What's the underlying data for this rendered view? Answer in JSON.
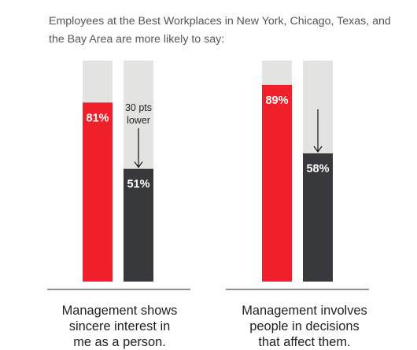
{
  "intro_text": "Employees at the Best Workplaces in New York, Chicago, Texas, and the Bay Area are more likely to say:",
  "colors": {
    "highlight": "#f0202a",
    "comparison": "#38393c",
    "track": "#e3e3e1",
    "baseline": "#222222",
    "arrow": "#111111",
    "label_text": "#ffffff"
  },
  "chart_data": [
    {
      "type": "bar",
      "ylim": [
        0,
        100
      ],
      "caption": "Management shows\nsincere interest in\nme as a person.",
      "bars": [
        {
          "value": 81,
          "label": "81%",
          "color_key": "highlight"
        },
        {
          "value": 51,
          "label": "51%",
          "color_key": "comparison"
        }
      ],
      "annotation": {
        "text": [
          "30 pts",
          "lower"
        ],
        "from_value": 81,
        "to_value": 51
      }
    },
    {
      "type": "bar",
      "ylim": [
        0,
        100
      ],
      "caption": "Management involves\npeople in decisions\nthat affect them.",
      "bars": [
        {
          "value": 89,
          "label": "89%",
          "color_key": "highlight"
        },
        {
          "value": 58,
          "label": "58%",
          "color_key": "comparison"
        }
      ],
      "annotation": {
        "text": [],
        "from_value": 89,
        "to_value": 58
      }
    }
  ]
}
